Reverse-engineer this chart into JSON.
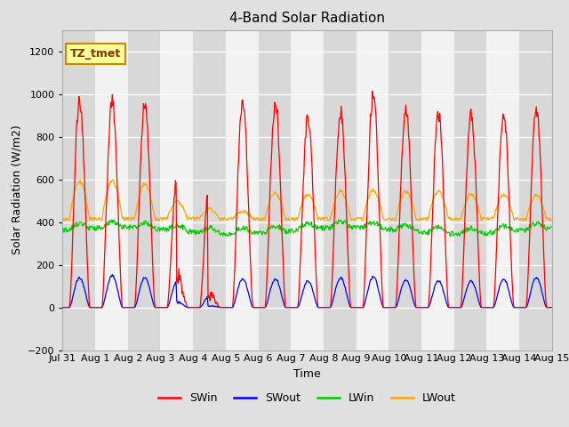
{
  "title": "4-Band Solar Radiation",
  "xlabel": "Time",
  "ylabel": "Solar Radiation (W/m2)",
  "ylim": [
    -200,
    1300
  ],
  "yticks": [
    -200,
    0,
    200,
    400,
    600,
    800,
    1000,
    1200
  ],
  "x_tick_labels": [
    "Jul 31",
    "Aug 1",
    "Aug 2",
    "Aug 3",
    "Aug 4",
    "Aug 5",
    "Aug 6",
    "Aug 7",
    "Aug 8",
    "Aug 9",
    "Aug 10",
    "Aug 11",
    "Aug 12",
    "Aug 13",
    "Aug 14",
    "Aug 15"
  ],
  "colors": {
    "SWin": "#FF0000",
    "SWout": "#0000FF",
    "LWin": "#00CC00",
    "LWout": "#FFA500"
  },
  "annotation_text": "TZ_tmet",
  "annotation_box_facecolor": "#FFFF99",
  "annotation_box_edgecolor": "#CC8800",
  "fig_bg_color": "#E0E0E0",
  "plot_bg_color": "#F2F2F2",
  "band_color_light": "#E8E8E8",
  "band_color_dark": "#D8D8D8",
  "grid_color": "#FFFFFF",
  "title_fontsize": 11,
  "axis_fontsize": 9,
  "tick_fontsize": 8,
  "legend_fontsize": 9,
  "day_peaks_SWin": [
    1010,
    1005,
    990,
    650,
    660,
    1010,
    1005,
    935,
    955,
    1040,
    975,
    950,
    950,
    955,
    970
  ],
  "day_peaks_SWout": [
    145,
    155,
    145,
    130,
    60,
    140,
    140,
    130,
    145,
    150,
    135,
    130,
    130,
    140,
    145
  ],
  "day_peaks_LWout": [
    590,
    595,
    580,
    495,
    460,
    450,
    535,
    530,
    545,
    548,
    542,
    542,
    530,
    530,
    525
  ],
  "LWin_base": 360,
  "LWout_base": 415
}
